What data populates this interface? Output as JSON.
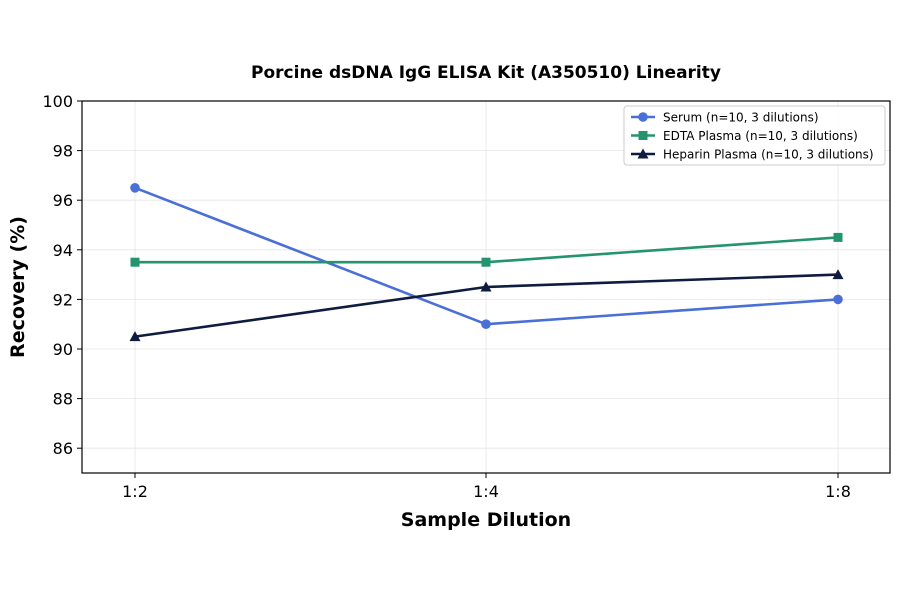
{
  "chart_data": {
    "type": "line",
    "title": "Porcine dsDNA IgG ELISA Kit (A350510) Linearity",
    "xlabel": "Sample Dilution",
    "ylabel": "Recovery (%)",
    "categories": [
      "1:2",
      "1:4",
      "1:8"
    ],
    "ylim": [
      85,
      100
    ],
    "yticks": [
      86,
      88,
      90,
      92,
      94,
      96,
      98,
      100
    ],
    "grid": true,
    "legend_position": "top-right",
    "series": [
      {
        "name": "Serum (n=10, 3 dilutions)",
        "values": [
          96.5,
          91.0,
          92.0
        ],
        "color": "#4a6fd6",
        "marker": "circle"
      },
      {
        "name": "EDTA Plasma (n=10, 3 dilutions)",
        "values": [
          93.5,
          93.5,
          94.5
        ],
        "color": "#23946e",
        "marker": "square"
      },
      {
        "name": "Heparin Plasma (n=10, 3 dilutions)",
        "values": [
          90.5,
          92.5,
          93.0
        ],
        "color": "#0f1c3f",
        "marker": "triangle"
      }
    ]
  }
}
